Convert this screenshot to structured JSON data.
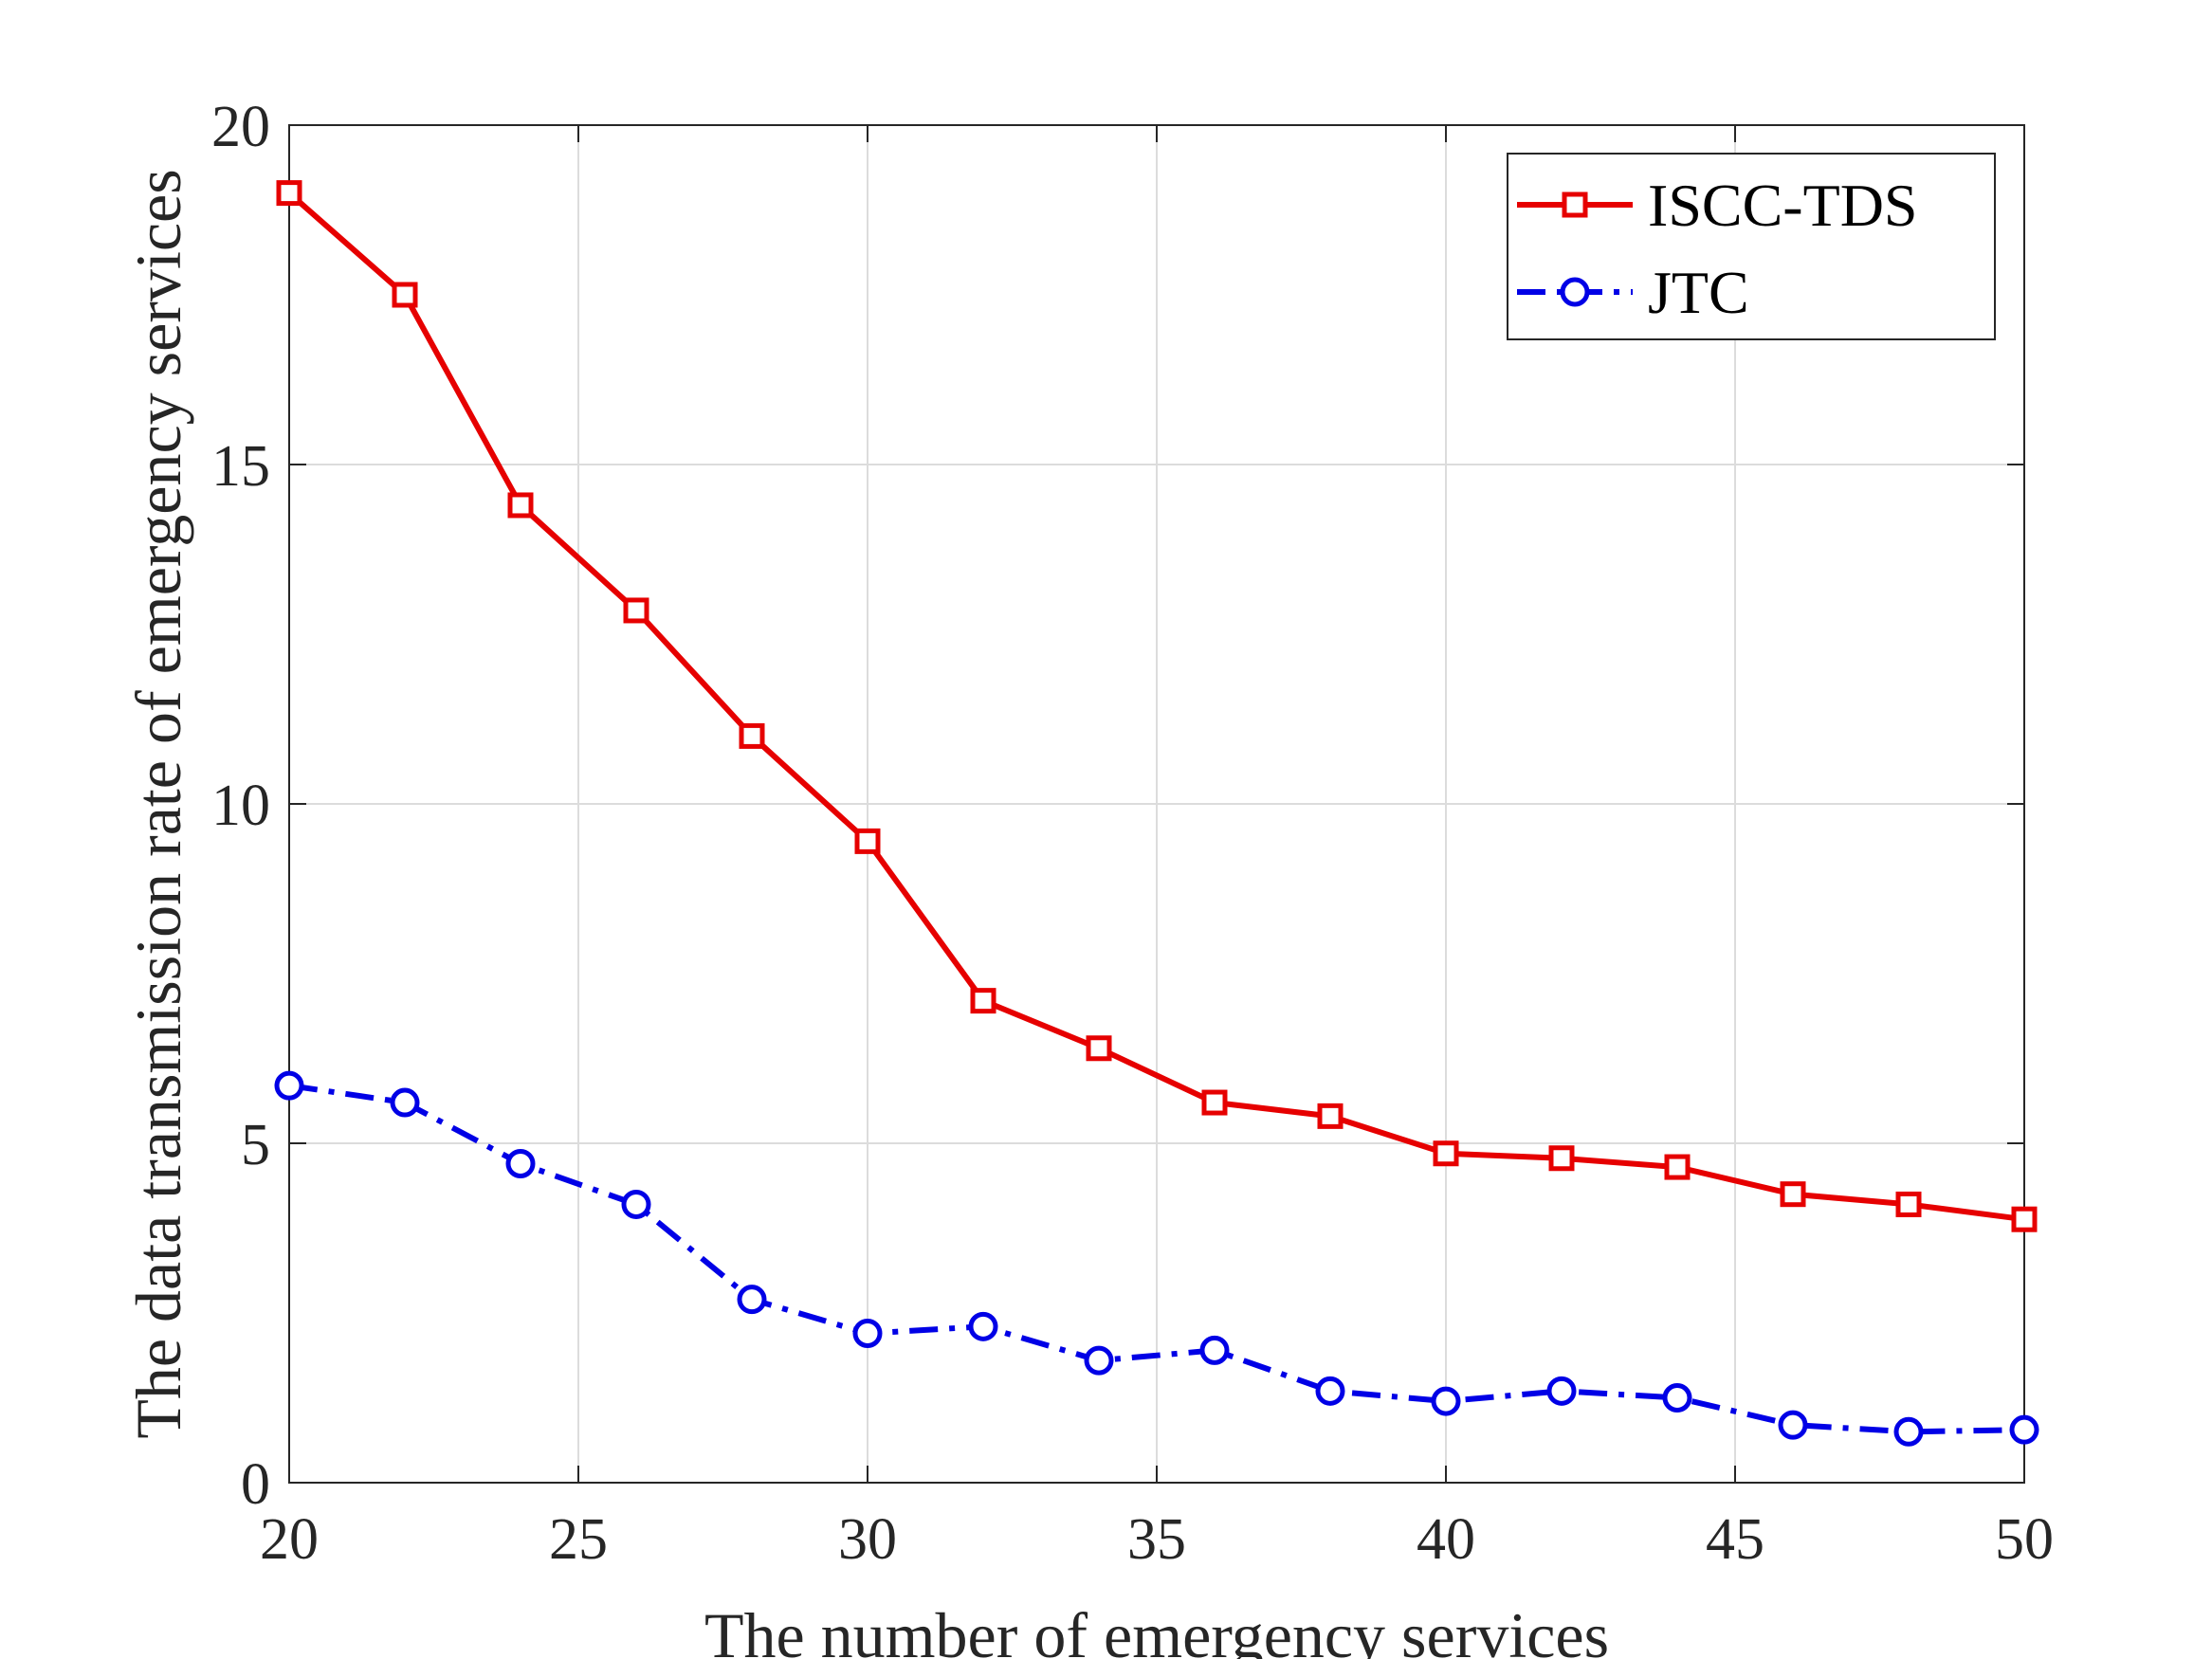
{
  "chart_data": {
    "type": "line",
    "title": "",
    "xlabel": "The number of emergency services",
    "ylabel": "The data transmission rate of emergency services",
    "xlim": [
      20,
      50
    ],
    "ylim": [
      0,
      20
    ],
    "xticks": [
      20,
      25,
      30,
      35,
      40,
      45,
      50
    ],
    "yticks": [
      0,
      5,
      10,
      15,
      20
    ],
    "grid": true,
    "legend_position": "top-right",
    "x": [
      20,
      22,
      24,
      26,
      28,
      30,
      32,
      34,
      36,
      38,
      40,
      42,
      44,
      46,
      48,
      50
    ],
    "series": [
      {
        "name": "ISCC-TDS",
        "color": "#e60000",
        "line_style": "solid",
        "marker": "square",
        "values": [
          19.0,
          17.5,
          14.4,
          12.85,
          11.0,
          9.45,
          7.1,
          6.4,
          5.6,
          5.4,
          4.85,
          4.78,
          4.65,
          4.25,
          4.1,
          3.88
        ]
      },
      {
        "name": "JTC",
        "color": "#0000e6",
        "line_style": "dash-dot",
        "marker": "circle",
        "values": [
          5.85,
          5.6,
          4.7,
          4.1,
          2.7,
          2.2,
          2.3,
          1.8,
          1.95,
          1.35,
          1.2,
          1.35,
          1.25,
          0.85,
          0.75,
          0.78
        ]
      }
    ]
  }
}
